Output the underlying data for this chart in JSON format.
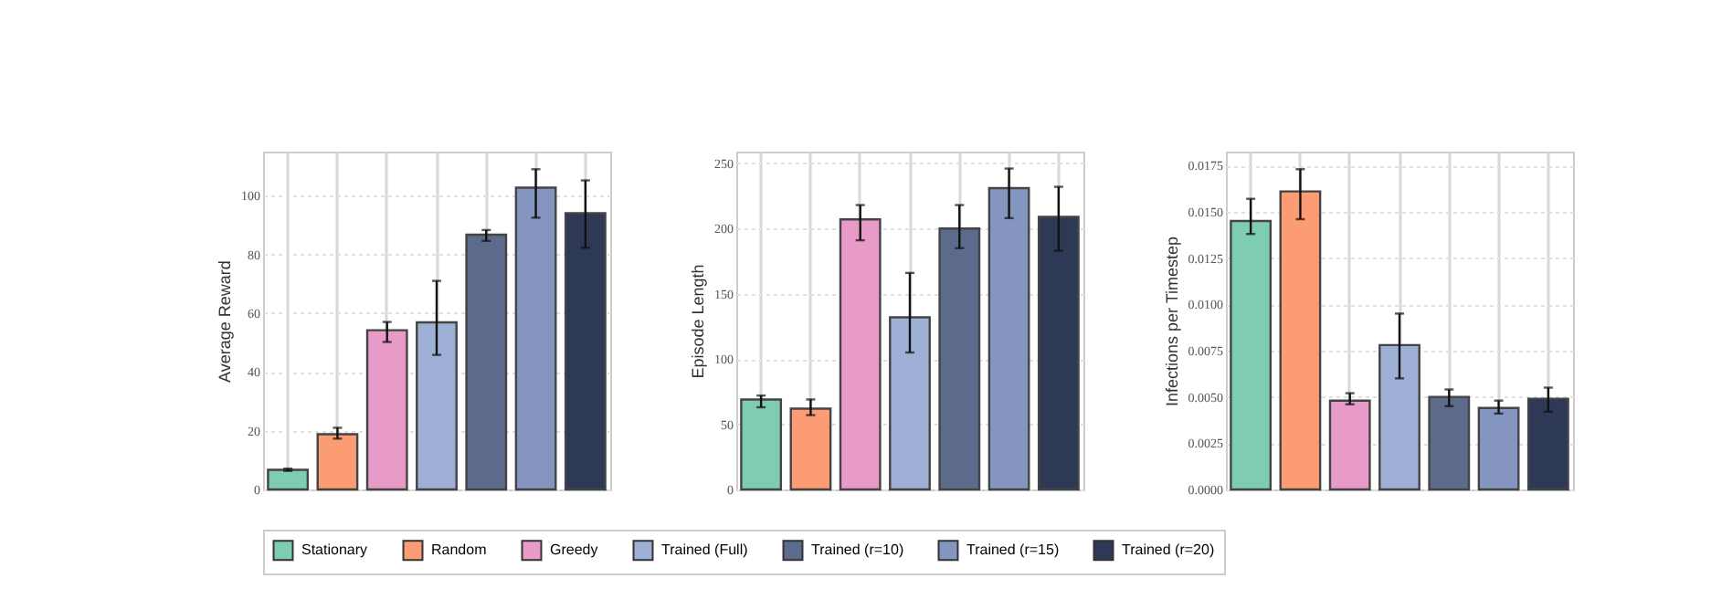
{
  "chart_data": [
    {
      "type": "bar",
      "ylabel": "Average Reward",
      "categories": [
        null
      ],
      "ylim": [
        0,
        115
      ],
      "yticks": [
        0,
        20,
        40,
        60,
        80,
        100
      ],
      "grid": true,
      "tick_labels": "y",
      "legend": "bottom",
      "series": [
        {
          "name": "Stationary",
          "color": "#7fcdb0",
          "values": [
            6.7
          ],
          "errors": [
            [
              6.3,
              7.1
            ]
          ]
        },
        {
          "name": "Random",
          "color": "#fc9c74",
          "values": [
            18.8
          ],
          "errors": [
            [
              17.3,
              21
            ]
          ]
        },
        {
          "name": "Greedy",
          "color": "#e89bc9",
          "values": [
            54.2
          ],
          "errors": [
            [
              50.2,
              57
            ]
          ]
        },
        {
          "name": "Trained (Full)",
          "color": "#9fb0d6",
          "values": [
            56.9
          ],
          "errors": [
            [
              45.8,
              71
            ]
          ]
        },
        {
          "name": "Trained (r=10)",
          "color": "#5c6b8c",
          "values": [
            86.7
          ],
          "errors": [
            [
              84.6,
              88.3
            ]
          ]
        },
        {
          "name": "Trained (r=15)",
          "color": "#8495bf",
          "values": [
            102.7
          ],
          "errors": [
            [
              92.5,
              109
            ]
          ]
        },
        {
          "name": "Trained (r=20)",
          "color": "#2e3a55",
          "values": [
            94
          ],
          "errors": [
            [
              82.3,
              105.2
            ]
          ]
        }
      ]
    },
    {
      "type": "bar",
      "ylabel": "Episode Length",
      "categories": [
        null
      ],
      "ylim": [
        0,
        259
      ],
      "yticks": [
        0,
        50,
        100,
        150,
        200,
        250
      ],
      "grid": true,
      "tick_labels": "y",
      "legend": "bottom",
      "series": [
        {
          "name": "Stationary",
          "color": "#7fcdb0",
          "values": [
            69
          ],
          "errors": [
            [
              63,
              72
            ]
          ]
        },
        {
          "name": "Random",
          "color": "#fc9c74",
          "values": [
            62
          ],
          "errors": [
            [
              57,
              69
            ]
          ]
        },
        {
          "name": "Greedy",
          "color": "#e89bc9",
          "values": [
            207
          ],
          "errors": [
            [
              191,
              218
            ]
          ]
        },
        {
          "name": "Trained (Full)",
          "color": "#9fb0d6",
          "values": [
            132
          ],
          "errors": [
            [
              105,
              166
            ]
          ]
        },
        {
          "name": "Trained (r=10)",
          "color": "#5c6b8c",
          "values": [
            200
          ],
          "errors": [
            [
              185,
              218
            ]
          ]
        },
        {
          "name": "Trained (r=15)",
          "color": "#8495bf",
          "values": [
            231
          ],
          "errors": [
            [
              208,
              246
            ]
          ]
        },
        {
          "name": "Trained (r=20)",
          "color": "#2e3a55",
          "values": [
            209
          ],
          "errors": [
            [
              183,
              232
            ]
          ]
        }
      ]
    },
    {
      "type": "bar",
      "ylabel": "Infections per Timestep",
      "categories": [
        null
      ],
      "ylim": [
        0,
        0.01825
      ],
      "yticks": [
        {
          "value": 0,
          "label": "0.0000"
        },
        {
          "value": 0.0025,
          "label": "0.0025"
        },
        {
          "value": 0.005,
          "label": "0.0050"
        },
        {
          "value": 0.0075,
          "label": "0.0075"
        },
        {
          "value": 0.01,
          "label": "0.0100"
        },
        {
          "value": 0.0125,
          "label": "0.0125"
        },
        {
          "value": 0.015,
          "label": "0.0150"
        },
        {
          "value": 0.0175,
          "label": "0.0175"
        }
      ],
      "grid": true,
      "tick_labels": "y",
      "legend": "bottom",
      "series": [
        {
          "name": "Stationary",
          "color": "#7fcdb0",
          "values": [
            0.0145
          ],
          "errors": [
            [
              0.0138,
              0.0157
            ]
          ]
        },
        {
          "name": "Random",
          "color": "#fc9c74",
          "values": [
            0.0161
          ],
          "errors": [
            [
              0.0146,
              0.0173
            ]
          ]
        },
        {
          "name": "Greedy",
          "color": "#e89bc9",
          "values": [
            0.0048
          ],
          "errors": [
            [
              0.0046,
              0.0052
            ]
          ]
        },
        {
          "name": "Trained (Full)",
          "color": "#9fb0d6",
          "values": [
            0.0078
          ],
          "errors": [
            [
              0.006,
              0.0095
            ]
          ]
        },
        {
          "name": "Trained (r=10)",
          "color": "#5c6b8c",
          "values": [
            0.005
          ],
          "errors": [
            [
              0.0045,
              0.0054
            ]
          ]
        },
        {
          "name": "Trained (r=15)",
          "color": "#8495bf",
          "values": [
            0.0044
          ],
          "errors": [
            [
              0.0041,
              0.0048
            ]
          ]
        },
        {
          "name": "Trained (r=20)",
          "color": "#2e3a55",
          "values": [
            0.0049
          ],
          "errors": [
            [
              0.0042,
              0.0055
            ]
          ]
        }
      ]
    }
  ]
}
